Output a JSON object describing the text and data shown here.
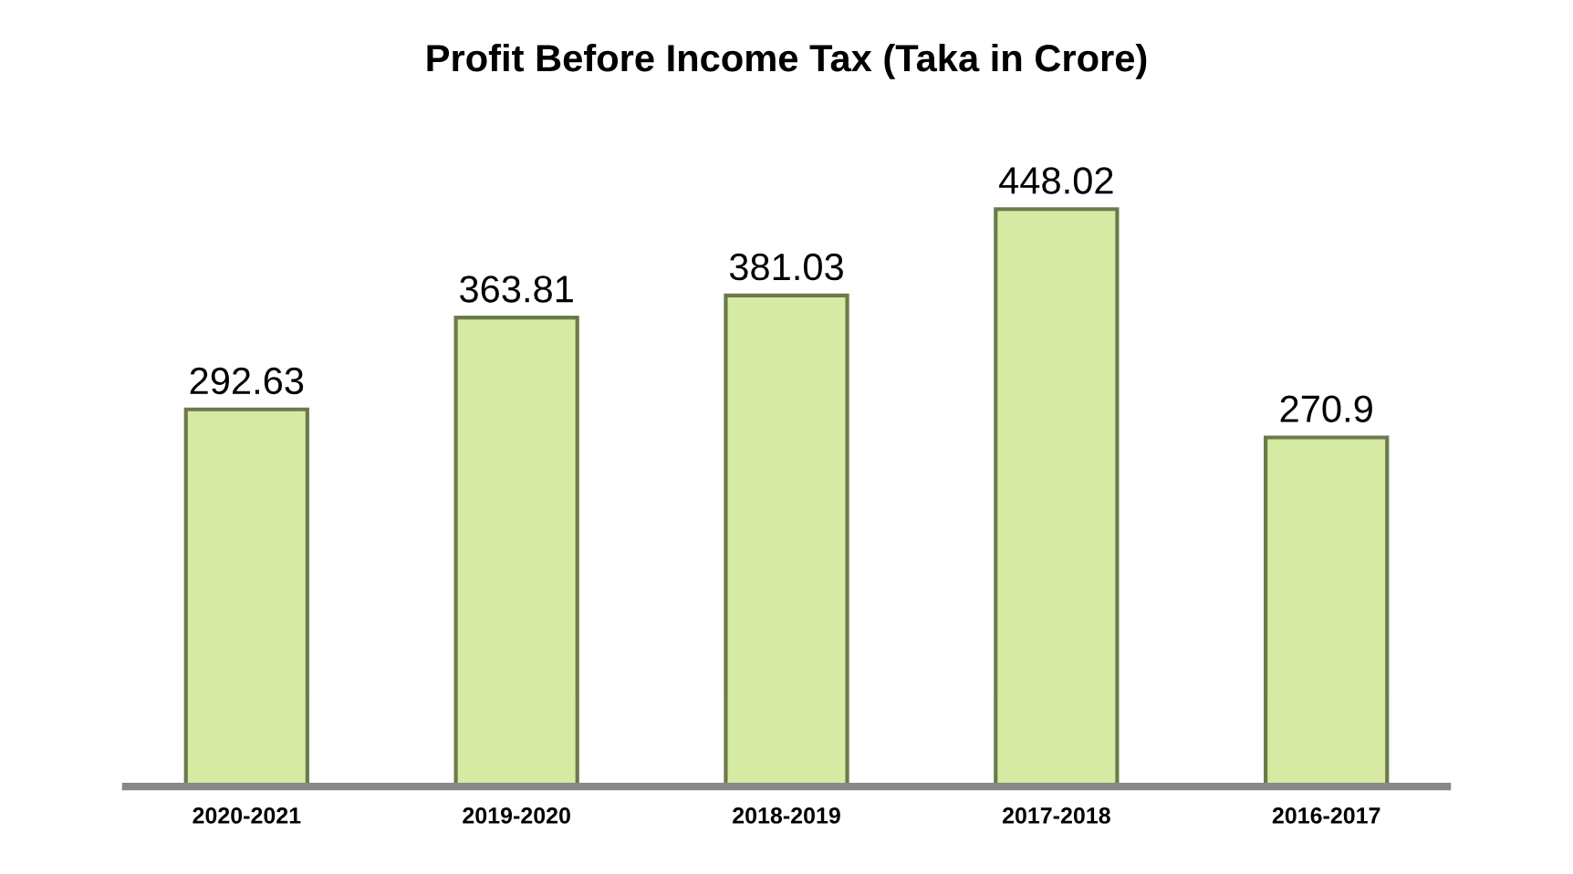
{
  "chart_data": {
    "type": "bar",
    "title": "Profit Before Income Tax (Taka in Crore)",
    "categories": [
      "2020-2021",
      "2019-2020",
      "2018-2019",
      "2017-2018",
      "2016-2017"
    ],
    "values": [
      292.63,
      363.81,
      381.03,
      448.02,
      270.9
    ],
    "color": "#d6eaa4",
    "data_labels": true,
    "grid": false,
    "legend": false
  }
}
